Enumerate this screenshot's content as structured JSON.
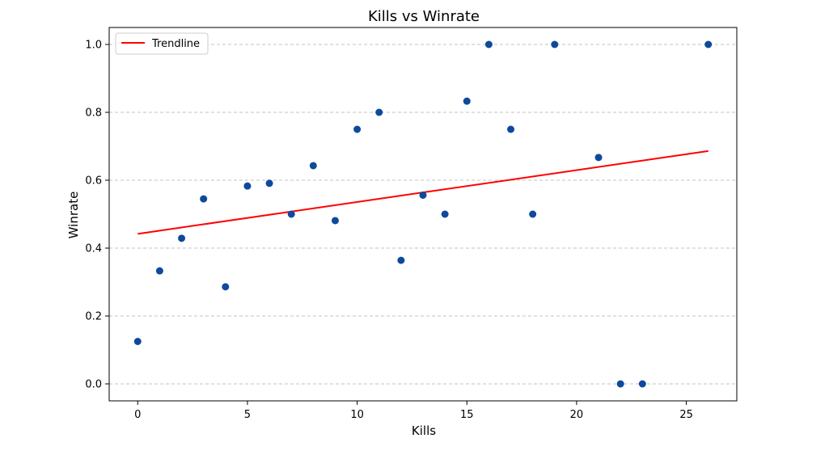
{
  "chart_data": {
    "type": "scatter",
    "title": "Kills vs Winrate",
    "xlabel": "Kills",
    "ylabel": "Winrate",
    "xlim": [
      -1.3,
      27.3
    ],
    "ylim": [
      -0.05,
      1.05
    ],
    "xticks": [
      0,
      5,
      10,
      15,
      20,
      25
    ],
    "yticks": [
      0.0,
      0.2,
      0.4,
      0.6,
      0.8,
      1.0
    ],
    "ytick_labels": [
      "0.0",
      "0.2",
      "0.4",
      "0.6",
      "0.8",
      "1.0"
    ],
    "grid": "y-dashed",
    "points": {
      "color": "#0d4a9c",
      "x": [
        0,
        1,
        2,
        3,
        4,
        5,
        6,
        7,
        8,
        9,
        10,
        11,
        12,
        13,
        14,
        15,
        16,
        17,
        18,
        19,
        21,
        22,
        23,
        26
      ],
      "y": [
        0.125,
        0.333,
        0.429,
        0.545,
        0.286,
        0.583,
        0.591,
        0.5,
        0.643,
        0.481,
        0.75,
        0.8,
        0.364,
        0.556,
        0.5,
        0.833,
        1.0,
        0.75,
        0.5,
        1.0,
        0.667,
        0.0,
        0.0,
        1.0
      ]
    },
    "trendline": {
      "name": "Trendline",
      "color": "#ff0000",
      "x": [
        0,
        26
      ],
      "y": [
        0.442,
        0.686
      ]
    },
    "legend_position": "top-left"
  }
}
